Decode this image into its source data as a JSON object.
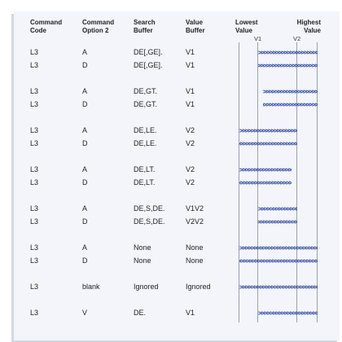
{
  "headers": [
    {
      "line1": "Command",
      "line2": "Code"
    },
    {
      "line1": "Command",
      "line2": "Option 2"
    },
    {
      "line1": "Search",
      "line2": "Buffer"
    },
    {
      "line1": "Value",
      "line2": "Buffer"
    },
    {
      "line1": "Lowest",
      "line2": "Value"
    },
    {
      "line1": "Highest",
      "line2": "Value"
    }
  ],
  "markers": [
    "V1",
    "V2"
  ],
  "rows": [
    {
      "code": "L3",
      "option": "A",
      "search": "DE[,GE].",
      "value": "V1",
      "arrow": {
        "dir": "right",
        "from": "V1",
        "to": "high"
      }
    },
    {
      "code": "L3",
      "option": "D",
      "search": "DE[,GE].",
      "value": "V1",
      "arrow": {
        "dir": "left",
        "from": "V1",
        "to": "high"
      }
    },
    {
      "code": "L3",
      "option": "A",
      "search": "DE,GT.",
      "value": "V1",
      "arrow": {
        "dir": "right",
        "from": "after-V1",
        "to": "high"
      }
    },
    {
      "code": "L3",
      "option": "D",
      "search": "DE,GT.",
      "value": "V1",
      "arrow": {
        "dir": "left",
        "from": "after-V1",
        "to": "high"
      }
    },
    {
      "code": "L3",
      "option": "A",
      "search": "DE,LE.",
      "value": "V2",
      "arrow": {
        "dir": "right",
        "from": "low",
        "to": "V2"
      }
    },
    {
      "code": "L3",
      "option": "D",
      "search": "DE,LE.",
      "value": "V2",
      "arrow": {
        "dir": "left",
        "from": "low",
        "to": "V2"
      }
    },
    {
      "code": "L3",
      "option": "A",
      "search": "DE,LT.",
      "value": "V2",
      "arrow": {
        "dir": "right",
        "from": "low",
        "to": "before-V2"
      }
    },
    {
      "code": "L3",
      "option": "D",
      "search": "DE,LT.",
      "value": "V2",
      "arrow": {
        "dir": "left",
        "from": "low",
        "to": "before-V2"
      }
    },
    {
      "code": "L3",
      "option": "A",
      "search": "DE,S,DE.",
      "value": "V1V2",
      "arrow": {
        "dir": "right",
        "from": "V1",
        "to": "V2"
      }
    },
    {
      "code": "L3",
      "option": "D",
      "search": "DE,S,DE.",
      "value": "V2V2",
      "arrow": {
        "dir": "left",
        "from": "V1",
        "to": "V2"
      }
    },
    {
      "code": "L3",
      "option": "A",
      "search": "None",
      "value": "None",
      "arrow": {
        "dir": "right",
        "from": "low",
        "to": "high"
      }
    },
    {
      "code": "L3",
      "option": "D",
      "search": "None",
      "value": "None",
      "arrow": {
        "dir": "left",
        "from": "low",
        "to": "high"
      }
    },
    {
      "code": "L3",
      "option": "blank",
      "search": "Ignored",
      "value": "Ignored",
      "arrow": {
        "dir": "right",
        "from": "low",
        "to": "high"
      }
    },
    {
      "code": "L3",
      "option": "V",
      "search": "DE.",
      "value": "V1",
      "arrow": {
        "dir": "right",
        "from": "V1",
        "to": "high"
      }
    }
  ],
  "colors": {
    "arrow": "#1f3a9a",
    "panel": "#f3f5fb",
    "line": "#9aa0ae"
  }
}
